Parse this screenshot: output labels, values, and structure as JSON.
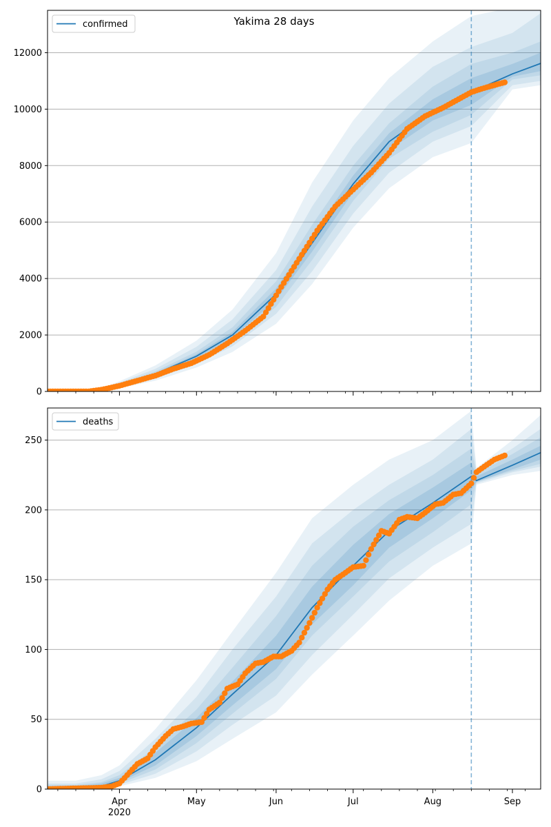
{
  "title": "Yakima 28 days",
  "colors": {
    "model_line": "#1f77b4",
    "observed_points": "#ff7f0e",
    "band": "#1f77b4",
    "grid": "#b0b0b0",
    "cutoff_line": "#1f77b4"
  },
  "x_axis": {
    "month_ticks": [
      {
        "date": "2020-04-01",
        "label": "Apr",
        "year_label": "2020"
      },
      {
        "date": "2020-05-01",
        "label": "May"
      },
      {
        "date": "2020-06-01",
        "label": "Jun"
      },
      {
        "date": "2020-07-01",
        "label": "Jul"
      },
      {
        "date": "2020-08-01",
        "label": "Aug"
      },
      {
        "date": "2020-09-01",
        "label": "Sep"
      }
    ],
    "range": [
      "2020-03-04",
      "2020-09-12"
    ],
    "minor_ticks": "weekly"
  },
  "chart_data": [
    {
      "type": "line",
      "name": "confirmed",
      "legend": {
        "label": "confirmed",
        "placement": "top-left"
      },
      "xlim": [
        "2020-03-04",
        "2020-09-12"
      ],
      "ylim": [
        0,
        13500
      ],
      "yticks": [
        0,
        2000,
        4000,
        6000,
        8000,
        10000,
        12000
      ],
      "grid": "y",
      "forecast_start": "2020-08-16",
      "model": {
        "x": [
          "2020-03-04",
          "2020-03-15",
          "2020-03-25",
          "2020-04-01",
          "2020-04-15",
          "2020-05-01",
          "2020-05-15",
          "2020-06-01",
          "2020-06-15",
          "2020-07-01",
          "2020-07-15",
          "2020-08-01",
          "2020-08-16",
          "2020-09-01",
          "2020-09-12"
        ],
        "y": [
          0,
          10,
          60,
          230,
          620,
          1250,
          2000,
          3450,
          5250,
          7350,
          8850,
          9950,
          10600,
          11250,
          11620
        ]
      },
      "bands": [
        {
          "upper": [
            0,
            20,
            110,
            360,
            920,
            1800,
            2900,
            4900,
            7400,
            9600,
            11100,
            12400,
            13300,
            13600,
            13600
          ],
          "lower": [
            0,
            5,
            30,
            120,
            380,
            850,
            1400,
            2400,
            3800,
            5800,
            7200,
            8300,
            8800,
            10700,
            10850
          ]
        },
        {
          "upper": [
            0,
            16,
            90,
            310,
            800,
            1580,
            2550,
            4300,
            6550,
            8700,
            10200,
            11500,
            12200,
            12700,
            13400
          ],
          "lower": [
            0,
            6,
            40,
            150,
            460,
            980,
            1600,
            2750,
            4250,
            6300,
            7750,
            8850,
            9400,
            10850,
            11000
          ]
        },
        {
          "upper": [
            0,
            13,
            75,
            270,
            710,
            1410,
            2270,
            3900,
            5900,
            8000,
            9500,
            10800,
            11600,
            12000,
            12400
          ],
          "lower": [
            0,
            8,
            48,
            190,
            530,
            1090,
            1760,
            3000,
            4650,
            6750,
            8250,
            9200,
            9800,
            11050,
            11200
          ]
        },
        {
          "upper": [
            0,
            11,
            66,
            250,
            660,
            1320,
            2110,
            3650,
            5550,
            7650,
            9150,
            10350,
            11100,
            11600,
            12000
          ],
          "lower": [
            0,
            9,
            54,
            210,
            580,
            1180,
            1890,
            3250,
            4950,
            7050,
            8550,
            9600,
            10150,
            11150,
            11350
          ]
        }
      ],
      "observed": {
        "x": [
          "2020-03-04",
          "2020-03-20",
          "2020-03-25",
          "2020-03-29",
          "2020-04-01",
          "2020-04-08",
          "2020-04-15",
          "2020-04-22",
          "2020-04-29",
          "2020-05-06",
          "2020-05-13",
          "2020-05-20",
          "2020-05-27",
          "2020-06-03",
          "2020-06-10",
          "2020-06-17",
          "2020-06-24",
          "2020-07-01",
          "2020-07-08",
          "2020-07-15",
          "2020-07-22",
          "2020-07-29",
          "2020-08-05",
          "2020-08-12",
          "2020-08-16",
          "2020-08-20",
          "2020-08-25",
          "2020-08-29"
        ],
        "y": [
          0,
          0,
          60,
          140,
          200,
          380,
          560,
          800,
          1000,
          1300,
          1700,
          2150,
          2650,
          3700,
          4700,
          5700,
          6550,
          7150,
          7750,
          8450,
          9300,
          9750,
          10050,
          10400,
          10600,
          10720,
          10850,
          10950
        ]
      }
    },
    {
      "type": "line",
      "name": "deaths",
      "legend": {
        "label": "deaths",
        "placement": "top-left"
      },
      "xlim": [
        "2020-03-04",
        "2020-09-12"
      ],
      "ylim": [
        0,
        273
      ],
      "yticks": [
        0,
        50,
        100,
        150,
        200,
        250
      ],
      "grid": "y",
      "forecast_start": "2020-08-16",
      "model": {
        "x": [
          "2020-03-04",
          "2020-03-15",
          "2020-03-25",
          "2020-04-01",
          "2020-04-15",
          "2020-05-01",
          "2020-05-15",
          "2020-06-01",
          "2020-06-15",
          "2020-07-01",
          "2020-07-15",
          "2020-08-01",
          "2020-08-16",
          "2020-08-18",
          "2020-09-01",
          "2020-09-12"
        ],
        "y": [
          0,
          0.5,
          2,
          6,
          21,
          44,
          68,
          96,
          130,
          160,
          185,
          205,
          224,
          221,
          232,
          241
        ]
      },
      "bands": [
        {
          "upper": [
            6,
            6,
            10,
            17,
            43,
            78,
            113,
            155,
            194,
            218,
            236,
            250,
            271,
            230,
            250,
            268
          ],
          "lower": [
            0,
            0,
            0,
            2,
            8,
            20,
            36,
            55,
            82,
            110,
            135,
            160,
            176,
            218,
            225,
            228
          ]
        },
        {
          "upper": [
            4,
            4,
            7,
            13,
            36,
            66,
            100,
            138,
            176,
            200,
            218,
            236,
            258,
            228,
            244,
            258
          ],
          "lower": [
            0,
            0,
            0.5,
            3,
            11,
            27,
            46,
            67,
            96,
            125,
            151,
            173,
            190,
            219,
            227,
            231
          ]
        },
        {
          "upper": [
            3,
            3,
            5,
            10,
            30,
            57,
            87,
            124,
            160,
            188,
            207,
            225,
            244,
            226,
            240,
            252
          ],
          "lower": [
            0,
            0,
            1,
            4,
            14,
            33,
            54,
            79,
            110,
            138,
            163,
            184,
            204,
            220,
            228,
            233
          ]
        },
        {
          "upper": [
            2,
            2,
            4,
            8,
            26,
            51,
            77,
            110,
            145,
            175,
            197,
            216,
            234,
            224,
            236,
            246
          ],
          "lower": [
            0,
            0,
            1,
            5,
            17,
            38,
            60,
            86,
            118,
            146,
            173,
            194,
            214,
            220,
            229,
            236
          ]
        }
      ],
      "observed": {
        "x": [
          "2020-03-04",
          "2020-03-25",
          "2020-03-29",
          "2020-04-01",
          "2020-04-04",
          "2020-04-08",
          "2020-04-12",
          "2020-04-15",
          "2020-04-19",
          "2020-04-22",
          "2020-04-26",
          "2020-04-29",
          "2020-05-03",
          "2020-05-06",
          "2020-05-10",
          "2020-05-13",
          "2020-05-17",
          "2020-05-20",
          "2020-05-24",
          "2020-05-27",
          "2020-05-31",
          "2020-06-03",
          "2020-06-07",
          "2020-06-10",
          "2020-06-14",
          "2020-06-17",
          "2020-06-21",
          "2020-06-24",
          "2020-06-28",
          "2020-07-01",
          "2020-07-05",
          "2020-07-08",
          "2020-07-12",
          "2020-07-15",
          "2020-07-19",
          "2020-07-22",
          "2020-07-26",
          "2020-07-29",
          "2020-08-02",
          "2020-08-05",
          "2020-08-09",
          "2020-08-12",
          "2020-08-16",
          "2020-08-18",
          "2020-08-21",
          "2020-08-25",
          "2020-08-29"
        ],
        "y": [
          0,
          1,
          2,
          4,
          10,
          18,
          22,
          30,
          38,
          43,
          45,
          47,
          48,
          57,
          62,
          72,
          75,
          83,
          90,
          91,
          95,
          95,
          99,
          105,
          119,
          130,
          143,
          150,
          155,
          159,
          160,
          172,
          185,
          183,
          193,
          195,
          194,
          198,
          204,
          205,
          211,
          212,
          219,
          227,
          231,
          236,
          239
        ]
      }
    }
  ]
}
